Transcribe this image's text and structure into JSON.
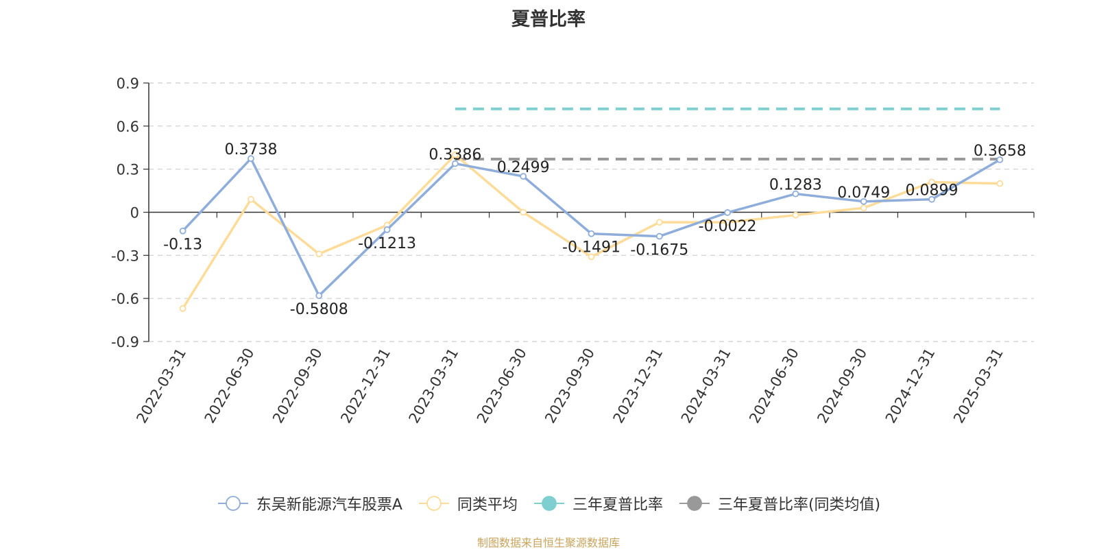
{
  "chart_data": {
    "type": "line",
    "title": "夏普比率",
    "categories": [
      "2022-03-31",
      "2022-06-30",
      "2022-09-30",
      "2022-12-31",
      "2023-03-31",
      "2023-06-30",
      "2023-09-30",
      "2023-12-31",
      "2024-03-31",
      "2024-06-30",
      "2024-09-30",
      "2024-12-31",
      "2025-03-31"
    ],
    "y_ticks": [
      "0.9",
      "0.6",
      "0.3",
      "0",
      "-0.3",
      "-0.6",
      "-0.9"
    ],
    "ylim": [
      -0.9,
      0.9
    ],
    "grid": true,
    "legend_position": "bottom",
    "series": [
      {
        "name": "东吴新能源汽车股票A",
        "color": "#8eaddb",
        "values": [
          -0.13,
          0.3738,
          -0.5808,
          -0.1213,
          0.3386,
          0.2499,
          -0.1491,
          -0.1675,
          -0.0022,
          0.1283,
          0.0749,
          0.0899,
          0.3658
        ],
        "labels": [
          "-0.13",
          "0.3738",
          "-0.5808",
          "-0.1213",
          "0.3386",
          "0.2499",
          "-0.1491",
          "-0.1675",
          "-0.0022",
          "0.1283",
          "0.0749",
          "0.0899",
          "0.3658"
        ]
      },
      {
        "name": "同类平均",
        "color": "#fddc9a",
        "values": [
          -0.67,
          0.09,
          -0.29,
          -0.09,
          0.4,
          0.0,
          -0.31,
          -0.07,
          -0.07,
          -0.02,
          0.03,
          0.21,
          0.2
        ]
      }
    ],
    "reference_lines": [
      {
        "name": "三年夏普比率",
        "color": "#7fcfd1",
        "value": 0.72,
        "from_index": 4,
        "to_index": 12
      },
      {
        "name": "三年夏普比率(同类均值)",
        "color": "#999999",
        "value": 0.37,
        "from_index": 4,
        "to_index": 12
      }
    ]
  },
  "footer": {
    "source": "制图数据来自恒生聚源数据库"
  }
}
